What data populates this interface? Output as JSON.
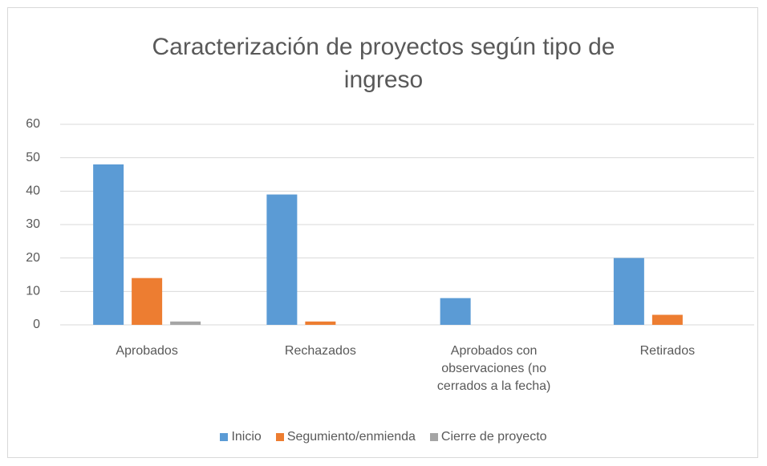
{
  "chart_data": {
    "type": "bar",
    "title": "Caracterización de proyectos según tipo de ingreso",
    "categories": [
      "Aprobados",
      "Rechazados",
      "Aprobados con observaciones (no cerrados a la fecha)",
      "Retirados"
    ],
    "series": [
      {
        "name": "Inicio",
        "color": "#5b9bd5",
        "values": [
          48,
          39,
          8,
          20
        ]
      },
      {
        "name": "Segumiento/enmienda",
        "color": "#ed7d31",
        "values": [
          14,
          1,
          0,
          3
        ]
      },
      {
        "name": "Cierre de proyecto",
        "color": "#a5a5a5",
        "values": [
          1,
          0,
          0,
          0
        ]
      }
    ],
    "ylim": [
      0,
      60
    ],
    "yticks": [
      0,
      10,
      20,
      30,
      40,
      50,
      60
    ],
    "grid": true,
    "legend": "bottom"
  }
}
